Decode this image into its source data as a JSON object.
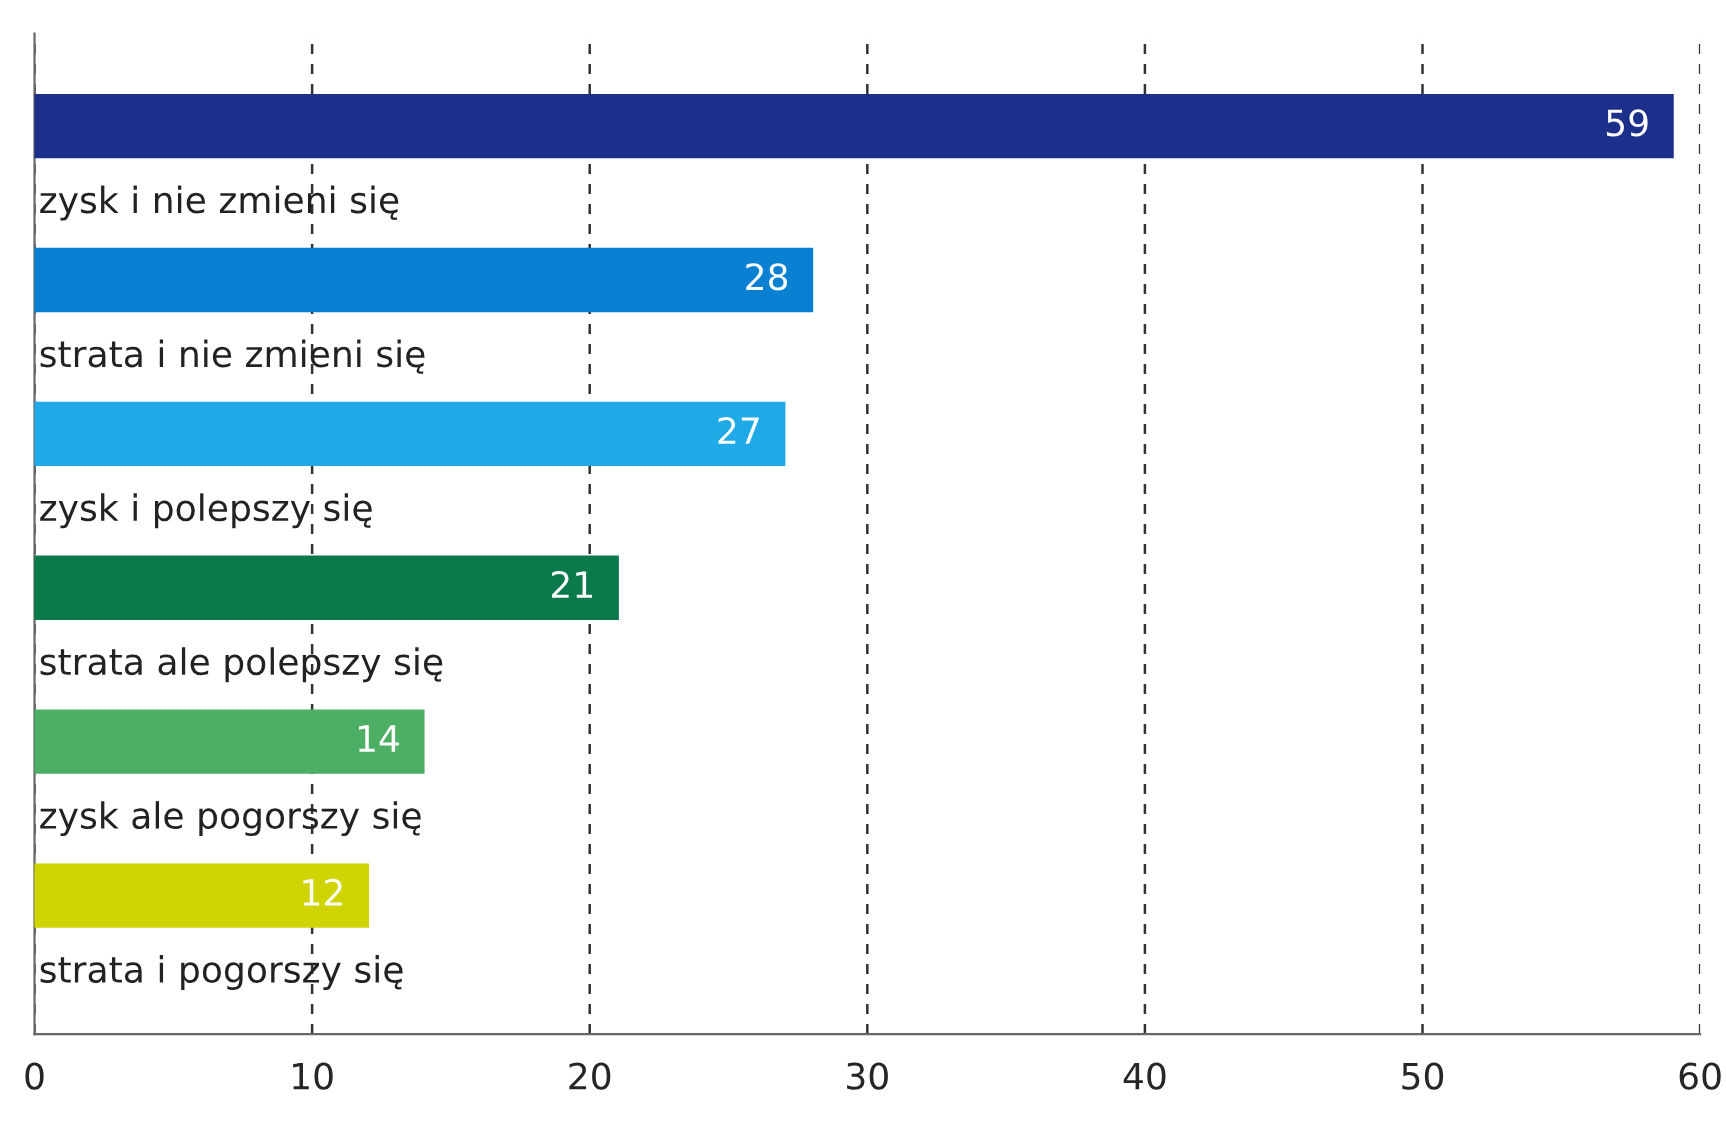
{
  "chart_data": {
    "type": "bar",
    "orientation": "horizontal",
    "categories": [
      "zysk i nie zmieni się",
      "strata i nie zmieni się",
      "zysk i polepszy się",
      "strata ale polepszy się",
      "zysk ale pogorszy się",
      "strata i pogorszy się"
    ],
    "values": [
      59,
      28,
      27,
      21,
      14,
      12
    ],
    "colors": [
      "#1c2f8a",
      "#0a80d2",
      "#1fa9e6",
      "#0b7a4b",
      "#4caf63",
      "#cfd400"
    ],
    "xlim": [
      0,
      60
    ],
    "xticks": [
      0,
      10,
      20,
      30,
      40,
      50,
      60
    ],
    "grid": "x",
    "data_labels": true,
    "tick_labels": "x"
  }
}
